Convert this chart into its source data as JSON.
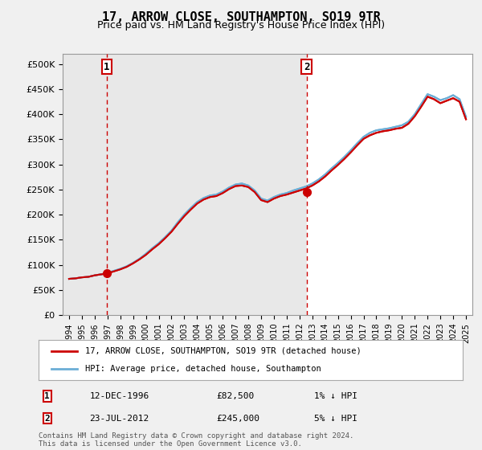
{
  "title": "17, ARROW CLOSE, SOUTHAMPTON, SO19 9TR",
  "subtitle": "Price paid vs. HM Land Registry's House Price Index (HPI)",
  "hpi_label": "HPI: Average price, detached house, Southampton",
  "price_label": "17, ARROW CLOSE, SOUTHAMPTON, SO19 9TR (detached house)",
  "sale1_date": "12-DEC-1996",
  "sale1_price": 82500,
  "sale1_label": "1% ↓ HPI",
  "sale2_date": "23-JUL-2012",
  "sale2_price": 245000,
  "sale2_label": "5% ↓ HPI",
  "sale1_x": 1996.95,
  "sale2_x": 2012.55,
  "ylim": [
    0,
    520000
  ],
  "xlim_start": 1993.5,
  "xlim_end": 2025.5,
  "hpi_color": "#6baed6",
  "price_color": "#cc0000",
  "marker_color": "#cc0000",
  "bg_color": "#f0f0f0",
  "plot_bg": "#ffffff",
  "footer": "Contains HM Land Registry data © Crown copyright and database right 2024.\nThis data is licensed under the Open Government Licence v3.0.",
  "hpi_data_x": [
    1994,
    1994.5,
    1995,
    1995.5,
    1996,
    1996.5,
    1997,
    1997.5,
    1998,
    1998.5,
    1999,
    1999.5,
    2000,
    2000.5,
    2001,
    2001.5,
    2002,
    2002.5,
    2003,
    2003.5,
    2004,
    2004.5,
    2005,
    2005.5,
    2006,
    2006.5,
    2007,
    2007.5,
    2008,
    2008.5,
    2009,
    2009.5,
    2010,
    2010.5,
    2011,
    2011.5,
    2012,
    2012.5,
    2013,
    2013.5,
    2014,
    2014.5,
    2015,
    2015.5,
    2016,
    2016.5,
    2017,
    2017.5,
    2018,
    2018.5,
    2019,
    2019.5,
    2020,
    2020.5,
    2021,
    2021.5,
    2022,
    2022.5,
    2023,
    2023.5,
    2024,
    2024.5,
    2025
  ],
  "hpi_data_y": [
    72000,
    73000,
    75000,
    76000,
    79000,
    81000,
    84000,
    88000,
    92000,
    97000,
    104000,
    112000,
    122000,
    133000,
    143000,
    155000,
    168000,
    185000,
    200000,
    213000,
    225000,
    233000,
    238000,
    240000,
    246000,
    254000,
    260000,
    262000,
    258000,
    248000,
    232000,
    228000,
    235000,
    240000,
    243000,
    248000,
    252000,
    256000,
    262000,
    270000,
    280000,
    292000,
    303000,
    315000,
    328000,
    342000,
    355000,
    363000,
    368000,
    370000,
    372000,
    375000,
    378000,
    385000,
    400000,
    420000,
    440000,
    435000,
    428000,
    432000,
    438000,
    430000,
    395000
  ],
  "price_data_x": [
    1994,
    1994.5,
    1995,
    1995.5,
    1996,
    1996.5,
    1997,
    1997.5,
    1998,
    1998.5,
    1999,
    1999.5,
    2000,
    2000.5,
    2001,
    2001.5,
    2002,
    2002.5,
    2003,
    2003.5,
    2004,
    2004.5,
    2005,
    2005.5,
    2006,
    2006.5,
    2007,
    2007.5,
    2008,
    2008.5,
    2009,
    2009.5,
    2010,
    2010.5,
    2011,
    2011.5,
    2012,
    2012.5,
    2013,
    2013.5,
    2014,
    2014.5,
    2015,
    2015.5,
    2016,
    2016.5,
    2017,
    2017.5,
    2018,
    2018.5,
    2019,
    2019.5,
    2020,
    2020.5,
    2021,
    2021.5,
    2022,
    2022.5,
    2023,
    2023.5,
    2024,
    2024.5,
    2025
  ],
  "price_data_y": [
    72000,
    73000,
    75000,
    76000,
    79000,
    81000,
    83000,
    87000,
    91000,
    96000,
    103000,
    111000,
    120000,
    131000,
    141000,
    153000,
    166000,
    182000,
    197000,
    210000,
    222000,
    230000,
    235000,
    237000,
    243000,
    251000,
    257000,
    258000,
    255000,
    245000,
    229000,
    225000,
    232000,
    237000,
    240000,
    244000,
    248000,
    252000,
    258000,
    266000,
    276000,
    288000,
    299000,
    311000,
    324000,
    338000,
    351000,
    358000,
    363000,
    366000,
    368000,
    371000,
    373000,
    381000,
    396000,
    415000,
    435000,
    430000,
    422000,
    427000,
    432000,
    425000,
    390000
  ]
}
